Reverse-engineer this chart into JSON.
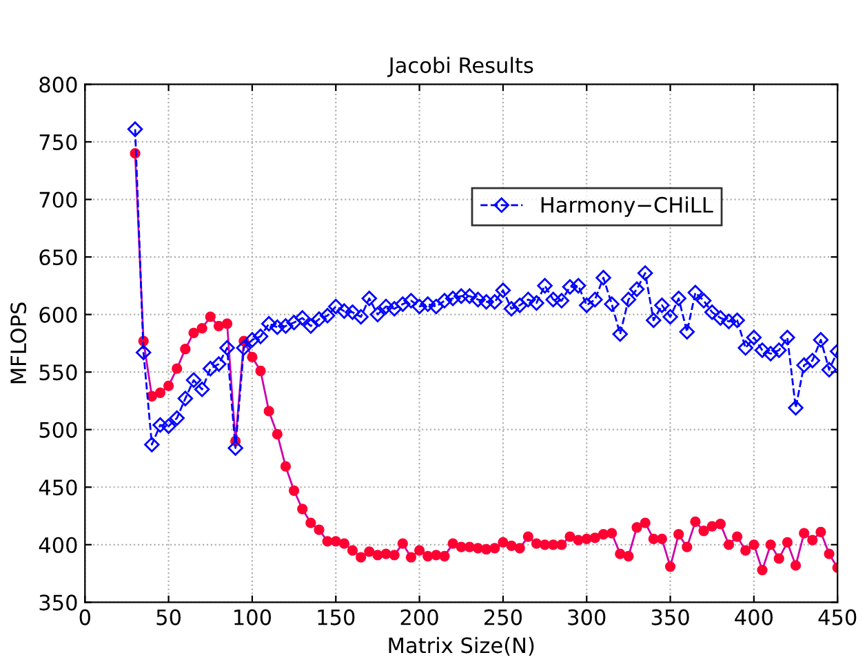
{
  "chart_data": {
    "type": "line",
    "title": "Jacobi Results",
    "xlabel": "Matrix Size(N)",
    "ylabel": "MFLOPS",
    "x": [
      30,
      35,
      40,
      45,
      50,
      55,
      60,
      65,
      70,
      75,
      80,
      85,
      90,
      95,
      100,
      105,
      110,
      115,
      120,
      125,
      130,
      135,
      140,
      145,
      150,
      155,
      160,
      165,
      170,
      175,
      180,
      185,
      190,
      195,
      200,
      205,
      210,
      215,
      220,
      225,
      230,
      235,
      240,
      245,
      250,
      255,
      260,
      265,
      270,
      275,
      280,
      285,
      290,
      295,
      300,
      305,
      310,
      315,
      320,
      325,
      330,
      335,
      340,
      345,
      350,
      355,
      360,
      365,
      370,
      375,
      380,
      385,
      390,
      395,
      400,
      405,
      410,
      415,
      420,
      425,
      430,
      435,
      440,
      445,
      450
    ],
    "series": [
      {
        "color": "#cc00aa",
        "marker": "circle",
        "line_style": "solid",
        "values": [
          740,
          577,
          529,
          532,
          538,
          553,
          570,
          584,
          588,
          598,
          590,
          592,
          490,
          577,
          563,
          551,
          516,
          496,
          468,
          447,
          431,
          419,
          413,
          403,
          403,
          401,
          395,
          389,
          394,
          391,
          392,
          391,
          401,
          389,
          395,
          390,
          391,
          390,
          401,
          398,
          398,
          397,
          396,
          397,
          402,
          399,
          397,
          407,
          401,
          400,
          400,
          400,
          407,
          404,
          405,
          406,
          409,
          410,
          392,
          390,
          415,
          419,
          405,
          405,
          381,
          409,
          398,
          420,
          412,
          416,
          418,
          400,
          407,
          395,
          400,
          378,
          400,
          388,
          402,
          382,
          410,
          404,
          411,
          392,
          380
        ]
      },
      {
        "name": "Harmony−CHiLL",
        "color": "#0000ff",
        "marker": "diamond",
        "line_style": "dashed",
        "values": [
          761,
          567,
          487,
          504,
          503,
          510,
          527,
          543,
          535,
          553,
          557,
          571,
          484,
          571,
          578,
          581,
          592,
          589,
          590,
          593,
          597,
          590,
          596,
          599,
          607,
          603,
          602,
          598,
          614,
          600,
          607,
          605,
          609,
          612,
          607,
          609,
          607,
          612,
          614,
          616,
          616,
          613,
          611,
          611,
          621,
          605,
          608,
          613,
          610,
          625,
          613,
          612,
          624,
          625,
          608,
          613,
          632,
          609,
          583,
          613,
          622,
          636,
          595,
          608,
          598,
          614,
          585,
          619,
          612,
          602,
          597,
          594,
          595,
          571,
          580,
          569,
          566,
          569,
          580,
          519,
          556,
          560,
          578,
          552,
          568
        ]
      }
    ],
    "xlim": [
      0,
      450
    ],
    "xticks": [
      0,
      50,
      100,
      150,
      200,
      250,
      300,
      350,
      400,
      450
    ],
    "ylim": [
      350,
      800
    ],
    "yticks": [
      350,
      400,
      450,
      500,
      550,
      600,
      650,
      700,
      750,
      800
    ],
    "grid": true,
    "legend": "top right"
  }
}
